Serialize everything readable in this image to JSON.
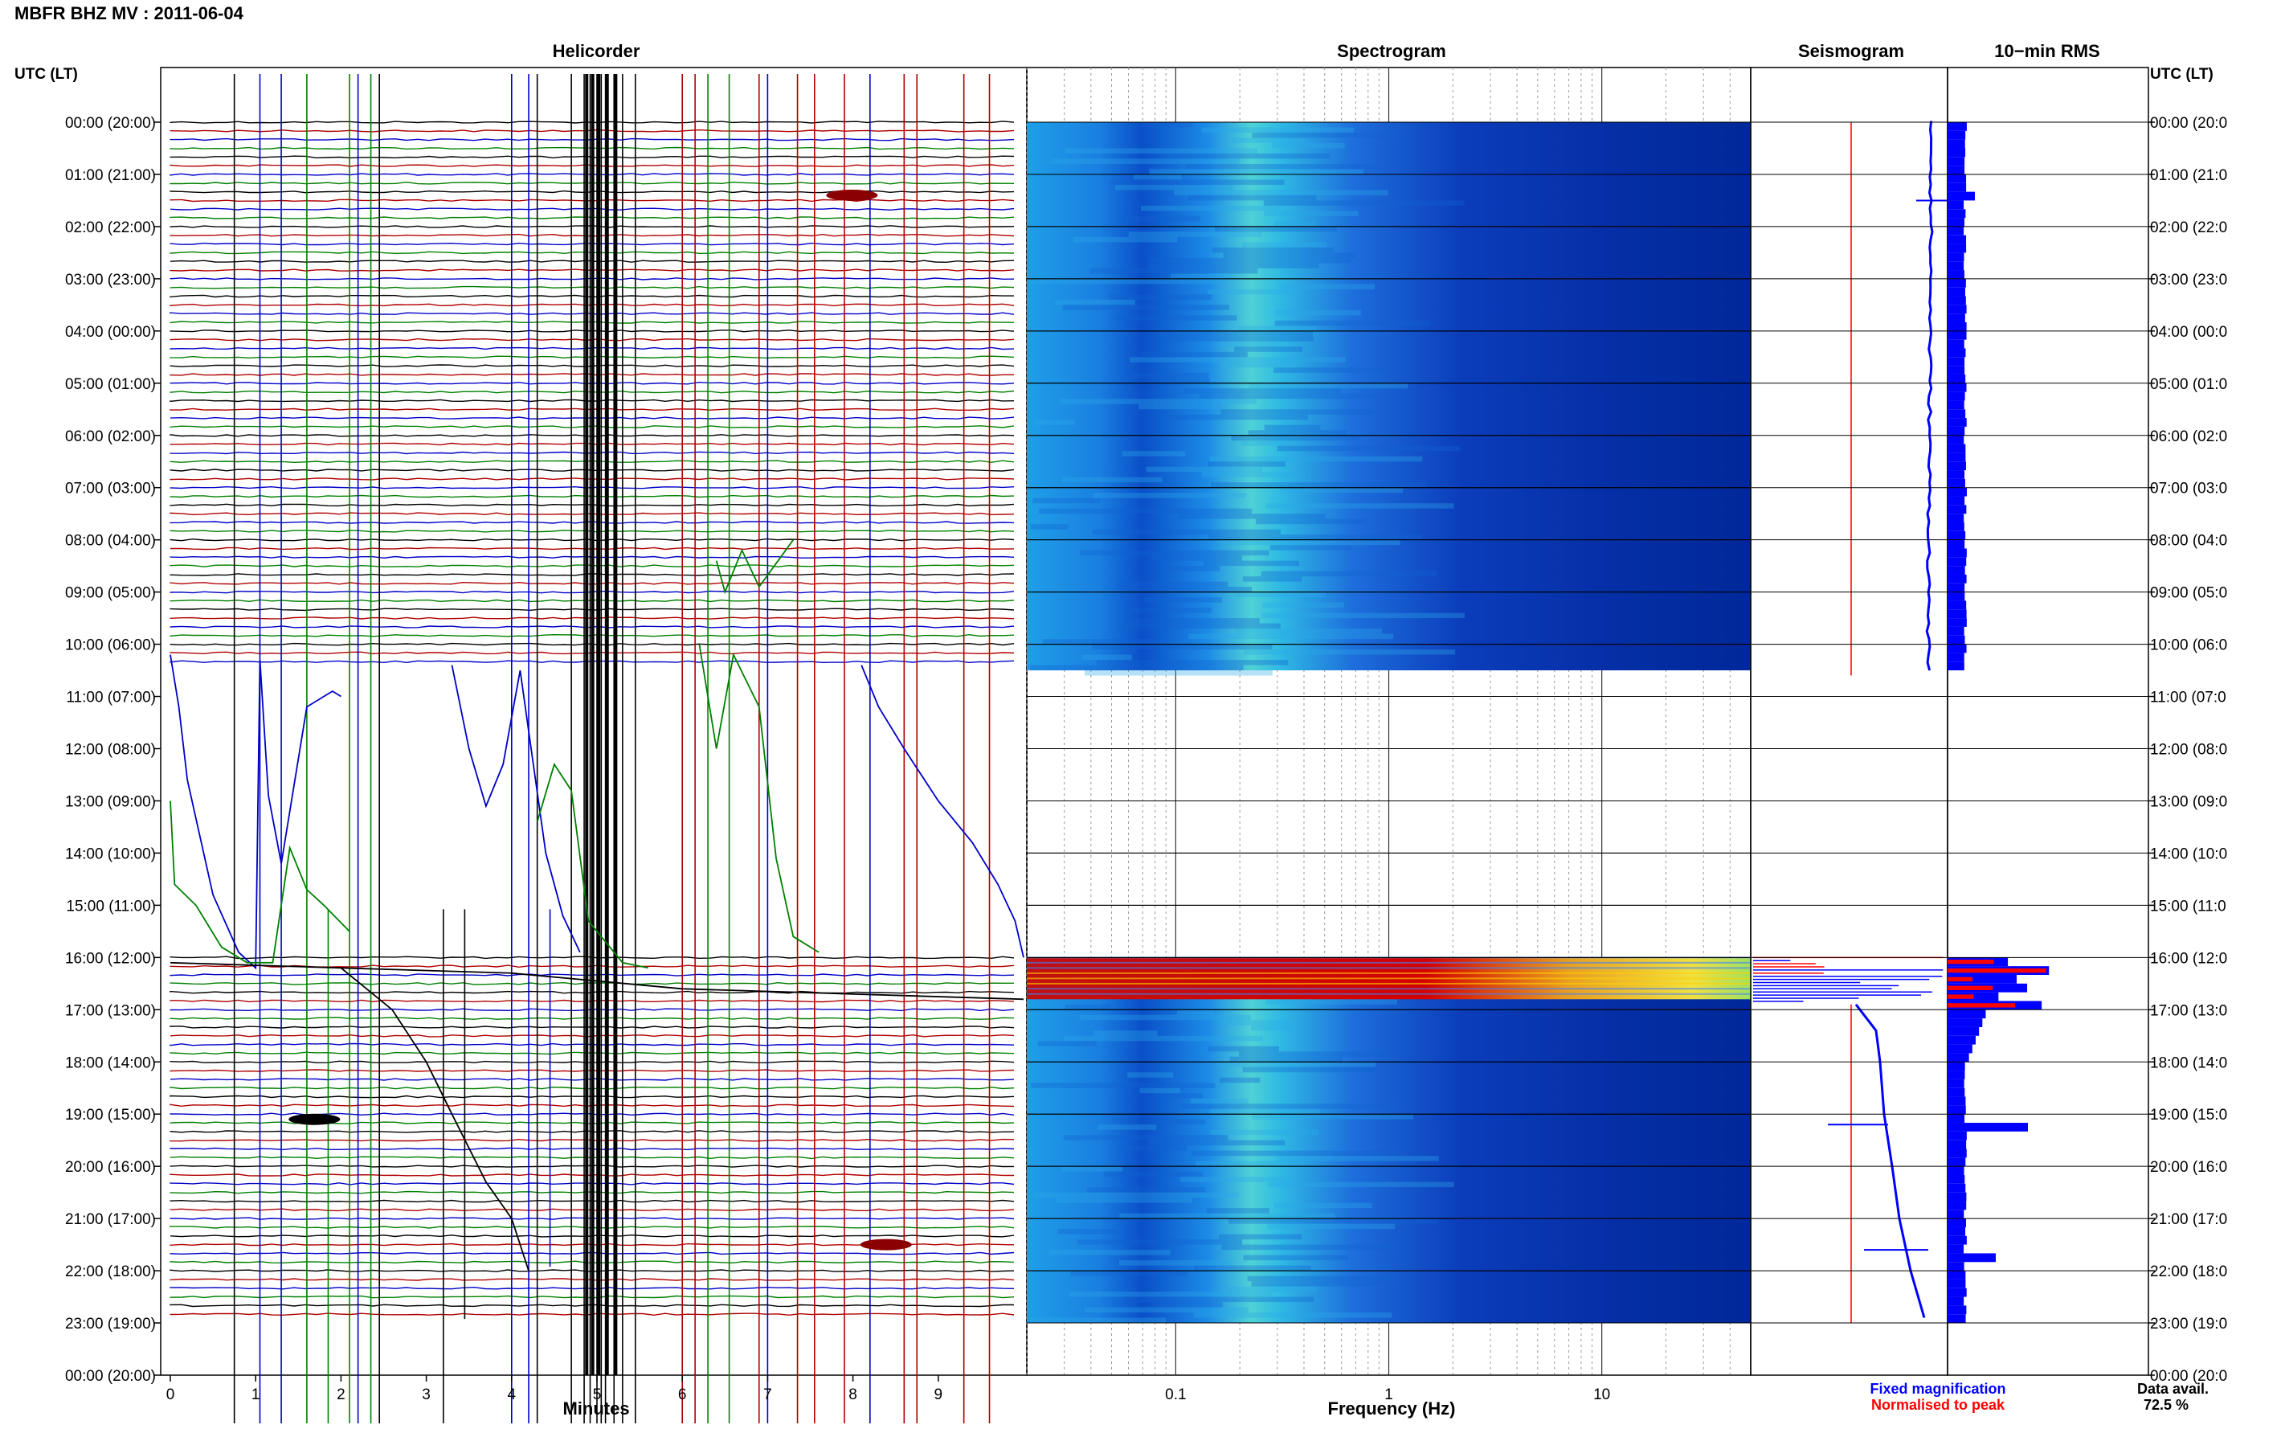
{
  "figure": {
    "title": "MBFR BHZ MV : 2011-06-04",
    "left_axis_label": "UTC (LT)",
    "right_axis_label": "UTC (LT)",
    "hour_labels": [
      "00:00 (20:00)",
      "01:00 (21:00)",
      "02:00 (22:00)",
      "03:00 (23:00)",
      "04:00 (00:00)",
      "05:00 (01:00)",
      "06:00 (02:00)",
      "07:00 (03:00)",
      "08:00 (04:00)",
      "09:00 (05:00)",
      "10:00 (06:00)",
      "11:00 (07:00)",
      "12:00 (08:00)",
      "13:00 (09:00)",
      "14:00 (10:00)",
      "15:00 (11:00)",
      "16:00 (12:00)",
      "17:00 (13:00)",
      "18:00 (14:00)",
      "19:00 (15:00)",
      "20:00 (16:00)",
      "21:00 (17:00)",
      "22:00 (18:00)",
      "23:00 (19:00)",
      "00:00 (20:00)"
    ],
    "right_hour_labels": [
      "00:00 (20:0",
      "01:00 (21:0",
      "02:00 (22:0",
      "03:00 (23:0",
      "04:00 (00:0",
      "05:00 (01:0",
      "06:00 (02:0",
      "07:00 (03:0",
      "08:00 (04:0",
      "09:00 (05:0",
      "10:00 (06:0",
      "11:00 (07:0",
      "12:00 (08:0",
      "13:00 (09:0",
      "14:00 (10:0",
      "15:00 (11:0",
      "16:00 (12:0",
      "17:00 (13:0",
      "18:00 (14:0",
      "19:00 (15:0",
      "20:00 (16:0",
      "21:00 (17:0",
      "22:00 (18:0",
      "23:00 (19:0",
      "00:00 (20:0"
    ],
    "legend_fixed": "Fixed magnification",
    "legend_normalised": "Normalised to peak",
    "data_avail_label": "Data avail.",
    "data_avail_value": "72.5 %"
  },
  "colors": {
    "helicorder_lines": [
      "#000000",
      "#b00000",
      "#0000c8",
      "#008000"
    ],
    "fixed_magnification": "#0000ff",
    "normalised_to_peak": "#ff0000"
  },
  "chart_data": [
    {
      "type": "line",
      "title": "Helicorder",
      "xlabel": "Minutes",
      "x_ticks": [
        "0",
        "1",
        "2",
        "3",
        "4",
        "5",
        "6",
        "7",
        "8",
        "9"
      ],
      "xlim": [
        0,
        10
      ],
      "lines_per_hour": 6,
      "data_gap_hours": [
        [
          10.5,
          16.0
        ],
        [
          23.0,
          24.0
        ]
      ],
      "burst_episode_hours": [
        16.0,
        16.9
      ],
      "notable_events": [
        {
          "hour": 19.1,
          "minute": 1.5,
          "color": "black"
        },
        {
          "hour": 1.4,
          "minute": 7.8,
          "color": "dark red"
        },
        {
          "hour": 21.5,
          "minute": 8.2,
          "color": "dark red"
        }
      ]
    },
    {
      "type": "heatmap",
      "title": "Spectrogram",
      "xlabel": "Frequency (Hz)",
      "x_scale": "log",
      "xlim": [
        0.02,
        50
      ],
      "x_ticks": [
        "0.1",
        "1",
        "10"
      ],
      "colormap": "jet",
      "data_gap_hours": [
        [
          10.5,
          16.0
        ],
        [
          23.0,
          24.0
        ]
      ],
      "high_energy_hours": [
        16.0,
        16.8
      ],
      "microseism_peak_hz": 0.25
    },
    {
      "type": "line",
      "title": "Seismogram",
      "series": [
        {
          "name": "Fixed magnification",
          "color": "#0000ff"
        },
        {
          "name": "Normalised to peak",
          "color": "#ff0000"
        }
      ]
    },
    {
      "type": "bar",
      "title": "10−min RMS",
      "orientation": "horizontal",
      "bin_minutes": 10,
      "series": [
        {
          "name": "Fixed magnification",
          "color": "#0000ff"
        },
        {
          "name": "Normalised to peak",
          "color": "#ff0000"
        }
      ]
    }
  ]
}
